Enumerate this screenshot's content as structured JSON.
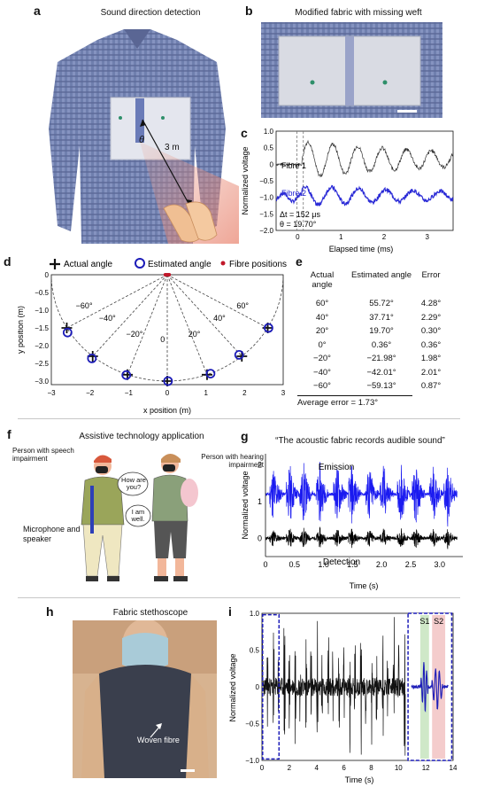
{
  "panel_a": {
    "letter": "a",
    "title": "Sound direction detection",
    "theta": "θ",
    "distance": "3 m"
  },
  "panel_b": {
    "letter": "b",
    "title": "Modified fabric with missing weft"
  },
  "panel_c": {
    "letter": "c",
    "ylabel": "Normalized voltage",
    "xlabel": "Elapsed time (ms)",
    "yticks": [
      "1.0",
      "0.5",
      "0",
      "−0.5",
      "−1.0",
      "−1.5",
      "−2.0"
    ],
    "xticks": [
      "0",
      "1",
      "2",
      "3"
    ],
    "fibre1": "Fibre 1",
    "fibre2": "Fibre 2",
    "delta_t": "Δt = 152 μs",
    "theta_val": "θ = 19.70°"
  },
  "panel_d": {
    "letter": "d",
    "legend": {
      "actual": "Actual angle",
      "estimated": "Estimated angle",
      "fibre": "Fibre positions"
    },
    "xlabel": "x position (m)",
    "ylabel": "y position (m)",
    "xticks": [
      "−3",
      "−2",
      "−1",
      "0",
      "1",
      "2",
      "3"
    ],
    "yticks": [
      "0",
      "−0.5",
      "−1.0",
      "−1.5",
      "−2.0",
      "−2.5",
      "−3.0"
    ],
    "angle_labels": [
      "−60°",
      "−40°",
      "−20°",
      "0",
      "20°",
      "40°",
      "60°"
    ]
  },
  "panel_e": {
    "letter": "e",
    "headers": [
      "Actual angle",
      "Estimated angle",
      "Error"
    ],
    "rows": [
      [
        "60°",
        "55.72°",
        "4.28°"
      ],
      [
        "40°",
        "37.71°",
        "2.29°"
      ],
      [
        "20°",
        "19.70°",
        "0.30°"
      ],
      [
        "0°",
        "0.36°",
        "0.36°"
      ],
      [
        "−20°",
        "−21.98°",
        "1.98°"
      ],
      [
        "−40°",
        "−42.01°",
        "2.01°"
      ],
      [
        "−60°",
        "−59.13°",
        "0.87°"
      ]
    ],
    "footer": "Average error = 1.73°"
  },
  "panel_f": {
    "letter": "f",
    "title": "Assistive technology application",
    "speech": "Person with speech impairment",
    "hearing": "Person with hearing impairment",
    "bubble1": "How are you?",
    "bubble2": "I am well.",
    "mic": "Microphone and speaker"
  },
  "panel_g": {
    "letter": "g",
    "title": "“The acoustic fabric records audible sound”",
    "ylabel": "Normalized voltage",
    "xlabel": "Time (s)",
    "yticks": [
      "2",
      "1",
      "0"
    ],
    "xticks": [
      "0",
      "0.5",
      "1.0",
      "1.5",
      "2.0",
      "2.5",
      "3.0"
    ],
    "emission": "Emission",
    "detection": "Detection"
  },
  "panel_h": {
    "letter": "h",
    "title": "Fabric stethoscope",
    "woven": "Woven fibre"
  },
  "panel_i": {
    "letter": "i",
    "ylabel": "Normalized voltage",
    "xlabel": "Time (s)",
    "yticks": [
      "1.0",
      "0.5",
      "0",
      "−0.5",
      "−1.0"
    ],
    "xticks": [
      "0",
      "2",
      "4",
      "6",
      "8",
      "10",
      "12",
      "14"
    ],
    "s1": "S1",
    "s2": "S2"
  },
  "chart_data": [
    {
      "type": "scatter",
      "panel": "d",
      "x_label": "x position (m)",
      "y_label": "y position (m)",
      "xlim": [
        -3,
        3
      ],
      "ylim": [
        -3.1,
        0
      ],
      "series": [
        {
          "name": "Actual angle",
          "x": [
            -2.6,
            -1.93,
            -1.03,
            0,
            1.03,
            1.93,
            2.6
          ],
          "y": [
            -1.5,
            -2.3,
            -2.82,
            -3.0,
            -2.82,
            -2.3,
            -1.5
          ]
        },
        {
          "name": "Estimated angle",
          "x": [
            -2.58,
            -1.95,
            -1.06,
            0.02,
            1.12,
            1.86,
            2.62
          ],
          "y": [
            -1.63,
            -2.36,
            -2.83,
            -3.0,
            -2.79,
            -2.26,
            -1.5
          ]
        },
        {
          "name": "Fibre positions",
          "x": [
            -0.05,
            -0.02,
            0.02,
            0.05
          ],
          "y": [
            0,
            0,
            0,
            0
          ]
        }
      ]
    },
    {
      "type": "table",
      "panel": "e",
      "columns": [
        "Actual angle",
        "Estimated angle",
        "Error"
      ],
      "rows": [
        [
          "60°",
          "55.72°",
          "4.28°"
        ],
        [
          "40°",
          "37.71°",
          "2.29°"
        ],
        [
          "20°",
          "19.70°",
          "0.30°"
        ],
        [
          "0°",
          "0.36°",
          "0.36°"
        ],
        [
          "−20°",
          "−21.98°",
          "1.98°"
        ],
        [
          "−40°",
          "−42.01°",
          "2.01°"
        ],
        [
          "−60°",
          "−59.13°",
          "0.87°"
        ]
      ]
    },
    {
      "type": "line",
      "panel": "c",
      "xlabel": "Elapsed time (ms)",
      "ylabel": "Normalized voltage",
      "xlim": [
        -0.5,
        3.6
      ],
      "ylim": [
        -2.0,
        1.0
      ],
      "series": [
        {
          "name": "Fibre 1",
          "offset": 0
        },
        {
          "name": "Fibre 2",
          "offset": -1.0
        }
      ]
    },
    {
      "type": "line",
      "panel": "g",
      "xlabel": "Time (s)",
      "ylabel": "Normalized voltage",
      "xlim": [
        0,
        3.4
      ],
      "ylim": [
        -0.5,
        2.3
      ],
      "series": [
        {
          "name": "Emission",
          "offset": 1.2
        },
        {
          "name": "Detection",
          "offset": 0
        }
      ]
    },
    {
      "type": "line",
      "panel": "i",
      "xlabel": "Time (s)",
      "ylabel": "Normalized voltage",
      "xlim": [
        0,
        14
      ],
      "ylim": [
        -1.0,
        1.0
      ]
    }
  ]
}
